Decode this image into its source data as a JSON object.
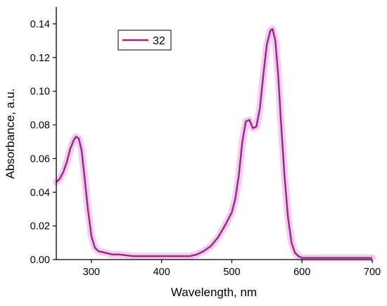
{
  "chart_data": {
    "type": "line",
    "xlabel": "Wavelength, nm",
    "ylabel": "Absorbance, a.u.",
    "xlim": [
      250,
      700
    ],
    "ylim": [
      0,
      0.15
    ],
    "xticks": [
      300,
      400,
      500,
      600,
      700
    ],
    "xtick_labels": [
      "300",
      "400",
      "500",
      "600",
      "700"
    ],
    "yticks": [
      0.0,
      0.02,
      0.04,
      0.06,
      0.08,
      0.1,
      0.12,
      0.14
    ],
    "ytick_labels": [
      "0.00",
      "0.02",
      "0.04",
      "0.06",
      "0.08",
      "0.10",
      "0.12",
      "0.14"
    ],
    "grid": false,
    "legend_position": "top-left",
    "series": [
      {
        "name": "32",
        "color": "#8e2d7c",
        "highlight_color": "#f6b8ee",
        "x": [
          250,
          255,
          260,
          265,
          270,
          275,
          278,
          282,
          286,
          290,
          295,
          300,
          305,
          310,
          320,
          330,
          340,
          360,
          380,
          400,
          420,
          440,
          450,
          460,
          470,
          480,
          490,
          500,
          505,
          510,
          515,
          520,
          525,
          530,
          535,
          540,
          545,
          550,
          555,
          558,
          562,
          566,
          570,
          575,
          580,
          585,
          590,
          595,
          600,
          610,
          620,
          640,
          660,
          680,
          700
        ],
        "y": [
          0.046,
          0.048,
          0.052,
          0.058,
          0.066,
          0.071,
          0.073,
          0.072,
          0.065,
          0.05,
          0.03,
          0.014,
          0.007,
          0.005,
          0.004,
          0.003,
          0.003,
          0.002,
          0.002,
          0.002,
          0.002,
          0.002,
          0.003,
          0.005,
          0.008,
          0.013,
          0.02,
          0.028,
          0.036,
          0.05,
          0.07,
          0.082,
          0.083,
          0.078,
          0.079,
          0.09,
          0.11,
          0.128,
          0.136,
          0.137,
          0.13,
          0.11,
          0.082,
          0.05,
          0.025,
          0.01,
          0.004,
          0.002,
          0.001,
          0.001,
          0.001,
          0.001,
          0.001,
          0.001,
          0.001
        ]
      }
    ]
  }
}
